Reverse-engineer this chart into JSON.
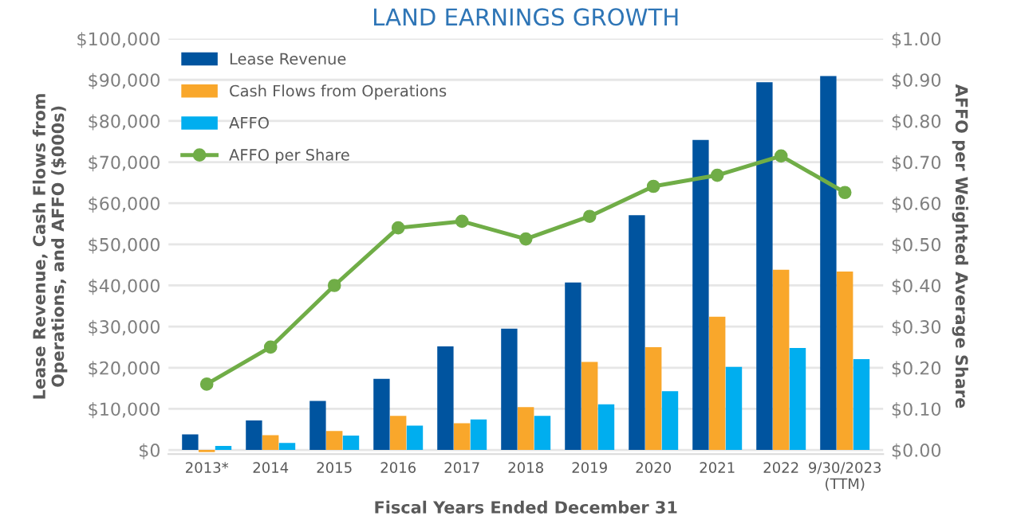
{
  "chart_data": {
    "type": "bar",
    "title": "LAND EARNINGS GROWTH",
    "xlabel": "Fiscal Years Ended December 31",
    "ylabel": "Lease Revenue, Cash Flows from\nOperations, and AFFO ($000s)",
    "y2label": "AFFO per Weighted Average Share",
    "categories": [
      "2013*",
      "2014",
      "2015",
      "2016",
      "2017",
      "2018",
      "2019",
      "2020",
      "2021",
      "2022",
      "9/30/2023\n(TTM)"
    ],
    "series": [
      {
        "name": "Lease Revenue",
        "color": "#00549f",
        "values": [
          3800,
          7200,
          11900,
          17300,
          25200,
          29500,
          40700,
          57100,
          75400,
          89400,
          90900
        ]
      },
      {
        "name": "Cash Flows from Operations",
        "color": "#f9a72b",
        "values": [
          -500,
          3600,
          4600,
          8300,
          6500,
          10400,
          21400,
          25000,
          32400,
          43800,
          43400
        ]
      },
      {
        "name": "AFFO",
        "color": "#00aeef",
        "values": [
          1000,
          1700,
          3500,
          5900,
          7400,
          8300,
          11100,
          14300,
          20200,
          24800,
          22100
        ]
      },
      {
        "name": "AFFO per Share",
        "type": "line",
        "axis": "y2",
        "color": "#70ad47",
        "marker": "circle",
        "values": [
          0.16,
          0.25,
          0.4,
          0.54,
          0.556,
          0.513,
          0.568,
          0.641,
          0.668,
          0.715,
          0.626
        ]
      }
    ],
    "ylim": [
      -1000,
      100000
    ],
    "yticks": [
      {
        "value": 0,
        "label": "$0"
      },
      {
        "value": 10000,
        "label": "$10,000"
      },
      {
        "value": 20000,
        "label": "$20,000"
      },
      {
        "value": 30000,
        "label": "$30,000"
      },
      {
        "value": 40000,
        "label": "$40,000"
      },
      {
        "value": 50000,
        "label": "$50,000"
      },
      {
        "value": 60000,
        "label": "$60,000"
      },
      {
        "value": 70000,
        "label": "$70,000"
      },
      {
        "value": 80000,
        "label": "$80,000"
      },
      {
        "value": 90000,
        "label": "$90,000"
      },
      {
        "value": 100000,
        "label": "$100,000"
      }
    ],
    "y2lim": [
      -0.01,
      1.0
    ],
    "y2ticks": [
      {
        "value": 0,
        "label": "$0.00"
      },
      {
        "value": 0.1,
        "label": "$0.10"
      },
      {
        "value": 0.2,
        "label": "$0.20"
      },
      {
        "value": 0.3,
        "label": "$0.30"
      },
      {
        "value": 0.4,
        "label": "$0.40"
      },
      {
        "value": 0.5,
        "label": "$0.50"
      },
      {
        "value": 0.6,
        "label": "$0.60"
      },
      {
        "value": 0.7,
        "label": "$0.70"
      },
      {
        "value": 0.8,
        "label": "$0.80"
      },
      {
        "value": 0.9,
        "label": "$0.90"
      },
      {
        "value": 1.0,
        "label": "$1.00"
      }
    ],
    "grid": "y",
    "legend": "top left"
  }
}
